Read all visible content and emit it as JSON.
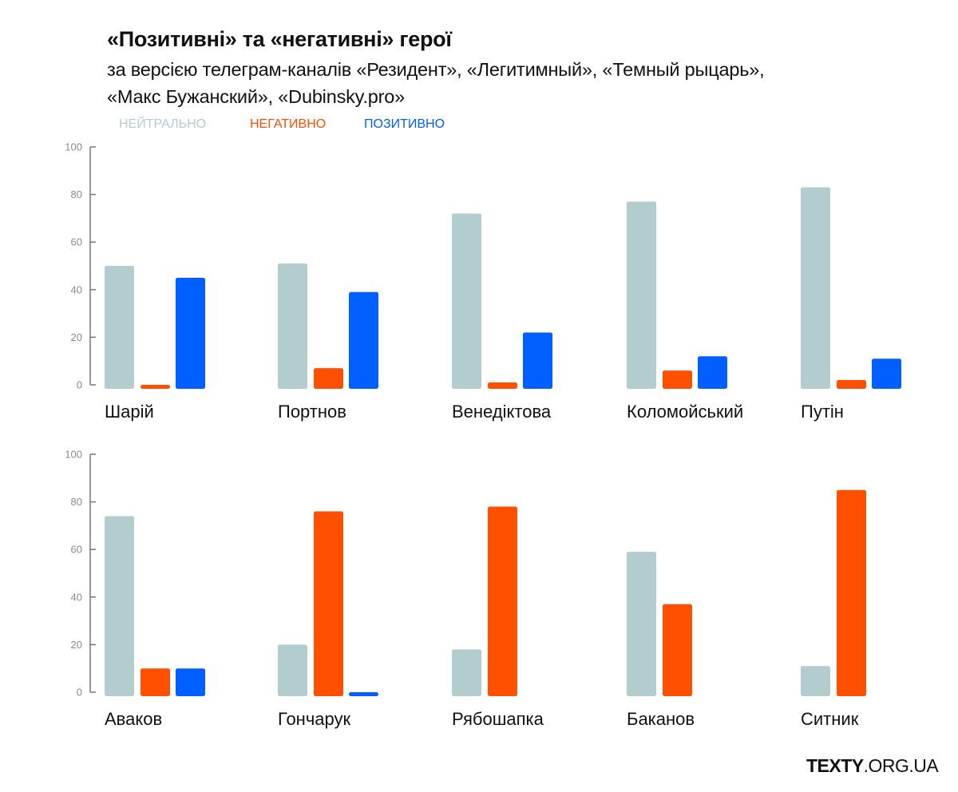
{
  "header": {
    "title": "«Позитивні» та «негативні» герої",
    "subtitle_line1": "за версією телеграм-каналів «Резидент», «Легитимный», «Темный рыцарь»,",
    "subtitle_line2": "«Макс Бужанский», «Dubinsky.pro»"
  },
  "logo": {
    "bold": "TEXTY",
    "rest": ".ORG.UA"
  },
  "colors": {
    "neutral": "#b3cccd",
    "negative": "#ff5000",
    "positive": "#005ffe",
    "axis": "#777777"
  },
  "chart_data": [
    {
      "type": "bar",
      "title": "«Позитивні» та «негативні» герої",
      "ylim": [
        0,
        100
      ],
      "yticks": [
        "0",
        "20",
        "40",
        "60",
        "80",
        "100"
      ],
      "categories": [
        "Шарій",
        "Портнов",
        "Венедіктова",
        "Коломойський",
        "Путін"
      ],
      "legend": "top-left",
      "series": [
        {
          "name": "НЕЙТРАЛЬНО",
          "key": "neutral",
          "values": [
            50,
            51,
            72,
            77,
            83
          ]
        },
        {
          "name": "НЕГАТИВНО",
          "key": "negative",
          "values": [
            0,
            7,
            1,
            6,
            2
          ]
        },
        {
          "name": "ПОЗИТИВНО",
          "key": "positive",
          "values": [
            45,
            39,
            22,
            12,
            11
          ]
        }
      ]
    },
    {
      "type": "bar",
      "ylim": [
        0,
        100
      ],
      "yticks": [
        "0",
        "20",
        "40",
        "60",
        "80",
        "100"
      ],
      "categories": [
        "Аваков",
        "Гончарук",
        "Рябошапка",
        "Баканов",
        "Ситник"
      ],
      "series": [
        {
          "name": "НЕЙТРАЛЬНО",
          "key": "neutral",
          "values": [
            74,
            20,
            18,
            59,
            11
          ]
        },
        {
          "name": "НЕГАТИВНО",
          "key": "negative",
          "values": [
            10,
            76,
            78,
            37,
            85
          ]
        },
        {
          "name": "ПОЗИТИВНО",
          "key": "positive",
          "values": [
            10,
            0,
            null,
            null,
            null
          ]
        }
      ]
    }
  ]
}
